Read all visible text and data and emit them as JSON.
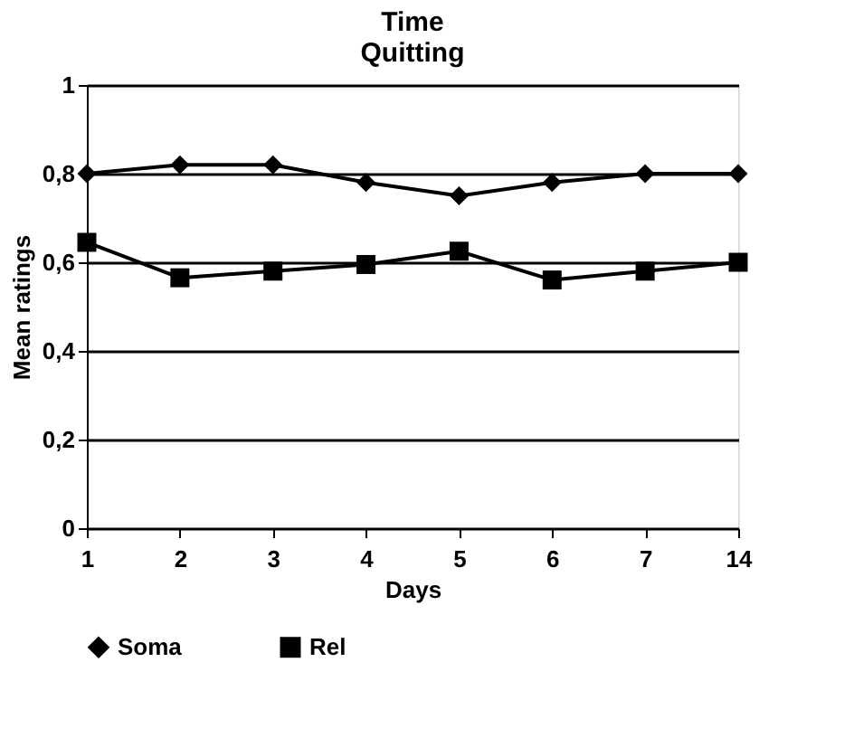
{
  "chart_data": {
    "type": "line",
    "title": [
      "Time",
      "Quitting"
    ],
    "xlabel": "Days",
    "ylabel": "Mean ratings",
    "categories": [
      "1",
      "2",
      "3",
      "4",
      "5",
      "6",
      "7",
      "14"
    ],
    "series": [
      {
        "name": "Soma",
        "color": "#000000",
        "marker": "diamond",
        "values": [
          0.8,
          0.82,
          0.82,
          0.78,
          0.75,
          0.78,
          0.8,
          0.8
        ]
      },
      {
        "name": "Rel",
        "color": "#000000",
        "marker": "square",
        "values": [
          0.645,
          0.565,
          0.58,
          0.595,
          0.625,
          0.56,
          0.58,
          0.6
        ]
      }
    ],
    "ylim": [
      0,
      1
    ],
    "yticks": [
      {
        "value": 0,
        "label": "0"
      },
      {
        "value": 0.2,
        "label": "0,2"
      },
      {
        "value": 0.4,
        "label": "0,4"
      },
      {
        "value": 0.6,
        "label": "0,6"
      },
      {
        "value": 0.8,
        "label": "0,8"
      },
      {
        "value": 1,
        "label": "1"
      }
    ],
    "grid": "y",
    "legend": "bottom",
    "line_style": "solid"
  }
}
